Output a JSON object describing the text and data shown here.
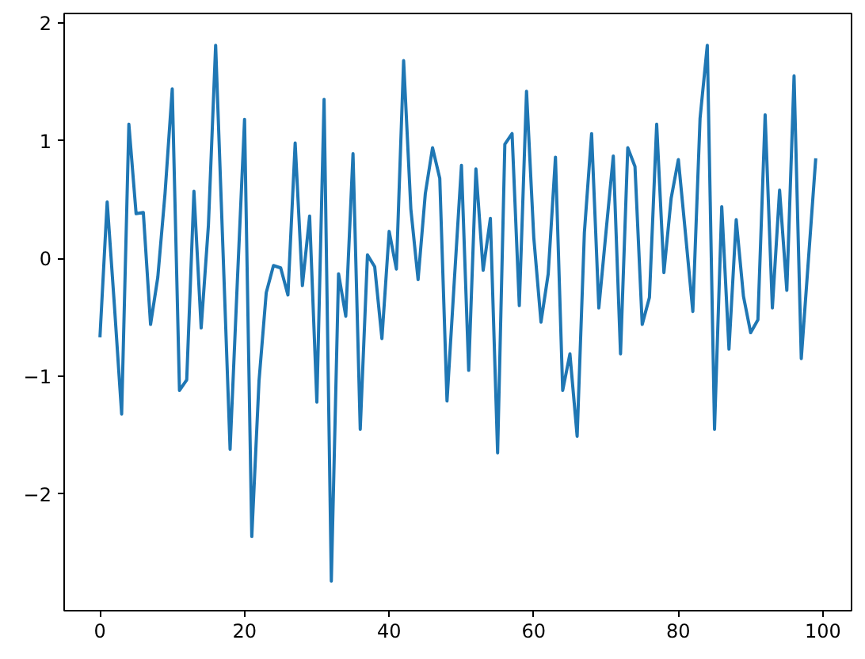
{
  "chart_data": {
    "type": "line",
    "color": "#1f77b4",
    "x": [
      0,
      1,
      2,
      3,
      4,
      5,
      6,
      7,
      8,
      9,
      10,
      11,
      12,
      13,
      14,
      15,
      16,
      17,
      18,
      19,
      20,
      21,
      22,
      23,
      24,
      25,
      26,
      27,
      28,
      29,
      30,
      31,
      32,
      33,
      34,
      35,
      36,
      37,
      38,
      39,
      40,
      41,
      42,
      43,
      44,
      45,
      46,
      47,
      48,
      49,
      50,
      51,
      52,
      53,
      54,
      55,
      56,
      57,
      58,
      59,
      60,
      61,
      62,
      63,
      64,
      65,
      66,
      67,
      68,
      69,
      70,
      71,
      72,
      73,
      74,
      75,
      76,
      77,
      78,
      79,
      80,
      81,
      82,
      83,
      84,
      85,
      86,
      87,
      88,
      89,
      90,
      91,
      92,
      93,
      94,
      95,
      96,
      97,
      98,
      99
    ],
    "values": [
      -0.67,
      0.48,
      -0.4,
      -1.32,
      1.14,
      0.38,
      0.39,
      -0.56,
      -0.16,
      0.55,
      1.44,
      -1.12,
      -1.03,
      0.57,
      -0.59,
      0.28,
      1.81,
      0.1,
      -1.62,
      -0.2,
      1.18,
      -2.36,
      -1.04,
      -0.29,
      -0.06,
      -0.08,
      -0.31,
      0.98,
      -0.23,
      0.36,
      -1.22,
      1.35,
      -2.74,
      -0.13,
      -0.49,
      0.89,
      -1.45,
      0.03,
      -0.07,
      -0.68,
      0.23,
      -0.09,
      1.68,
      0.42,
      -0.18,
      0.55,
      0.94,
      0.68,
      -1.21,
      -0.2,
      0.79,
      -0.95,
      0.76,
      -0.1,
      0.34,
      -1.65,
      0.97,
      1.06,
      -0.4,
      1.42,
      0.18,
      -0.54,
      -0.13,
      0.86,
      -1.12,
      -0.81,
      -1.51,
      0.22,
      1.06,
      -0.42,
      0.23,
      0.87,
      -0.81,
      0.94,
      0.78,
      -0.56,
      -0.33,
      1.14,
      -0.12,
      0.51,
      0.84,
      0.2,
      -0.45,
      1.19,
      1.81,
      -1.45,
      0.44,
      -0.77,
      0.33,
      -0.32,
      -0.63,
      -0.52,
      1.22,
      -0.42,
      0.58,
      -0.27,
      1.55,
      -0.85,
      0.0,
      0.85
    ],
    "xlim": [
      -4.95,
      103.95
    ],
    "xticks": [
      0,
      20,
      40,
      60,
      80,
      100
    ],
    "ylim": [
      -2.99,
      2.08
    ],
    "yticks": [
      {
        "value": -2,
        "label": "−2"
      },
      {
        "value": -1,
        "label": "−1"
      },
      0,
      1,
      2
    ]
  }
}
